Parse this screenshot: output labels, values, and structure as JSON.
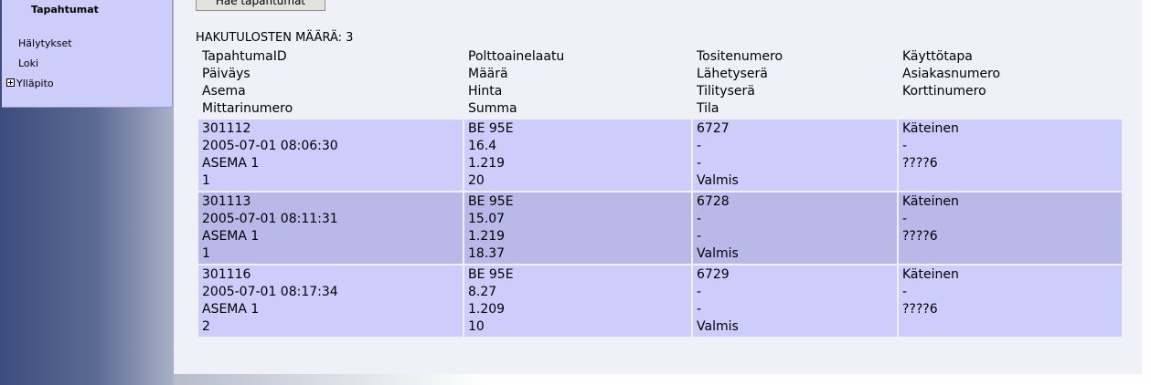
{
  "sidebar": {
    "active": "Tapahtumat",
    "items": [
      {
        "label": "Hälytykset"
      },
      {
        "label": "Loki"
      },
      {
        "label": "Ylläpito"
      }
    ]
  },
  "search": {
    "button_label": "Hae tapahtumat",
    "count_label": "HAKUTULOSTEN MÄÄRÄ: 3"
  },
  "table": {
    "headers": [
      [
        "TapahtumaID",
        "Päiväys",
        "Asema",
        "Mittarinumero"
      ],
      [
        "Polttoainelaatu",
        "Määrä",
        "Hinta",
        "Summa"
      ],
      [
        "Tositenumero",
        "Lähetyserä",
        "Tilityserä",
        "Tila"
      ],
      [
        "Käyttötapa",
        "Asiakasnumero",
        "Korttinumero",
        ""
      ]
    ],
    "rows": [
      {
        "c1": [
          "301112",
          "2005-07-01 08:06:30",
          "ASEMA 1",
          "1"
        ],
        "c2": [
          "BE 95E",
          "16.4",
          "1.219",
          "20"
        ],
        "c3": [
          "6727",
          "-",
          "-",
          "Valmis"
        ],
        "c4": [
          "Käteinen",
          "-",
          "????6",
          ""
        ]
      },
      {
        "c1": [
          "301113",
          "2005-07-01 08:11:31",
          "ASEMA 1",
          "1"
        ],
        "c2": [
          "BE 95E",
          "15.07",
          "1.219",
          "18.37"
        ],
        "c3": [
          "6728",
          "-",
          "-",
          "Valmis"
        ],
        "c4": [
          "Käteinen",
          "-",
          "????6",
          ""
        ]
      },
      {
        "c1": [
          "301116",
          "2005-07-01 08:17:34",
          "ASEMA 1",
          "2"
        ],
        "c2": [
          "BE 95E",
          "8.27",
          "1.209",
          "10"
        ],
        "c3": [
          "6729",
          "-",
          "-",
          "Valmis"
        ],
        "c4": [
          "Käteinen",
          "-",
          "????6",
          ""
        ]
      }
    ]
  },
  "colors": {
    "row_light": "#cccdfb",
    "row_dark": "#b8b9e8",
    "menu_bg": "#cccdf9",
    "sidebar_gradient_dark": "#3b4d7d"
  }
}
